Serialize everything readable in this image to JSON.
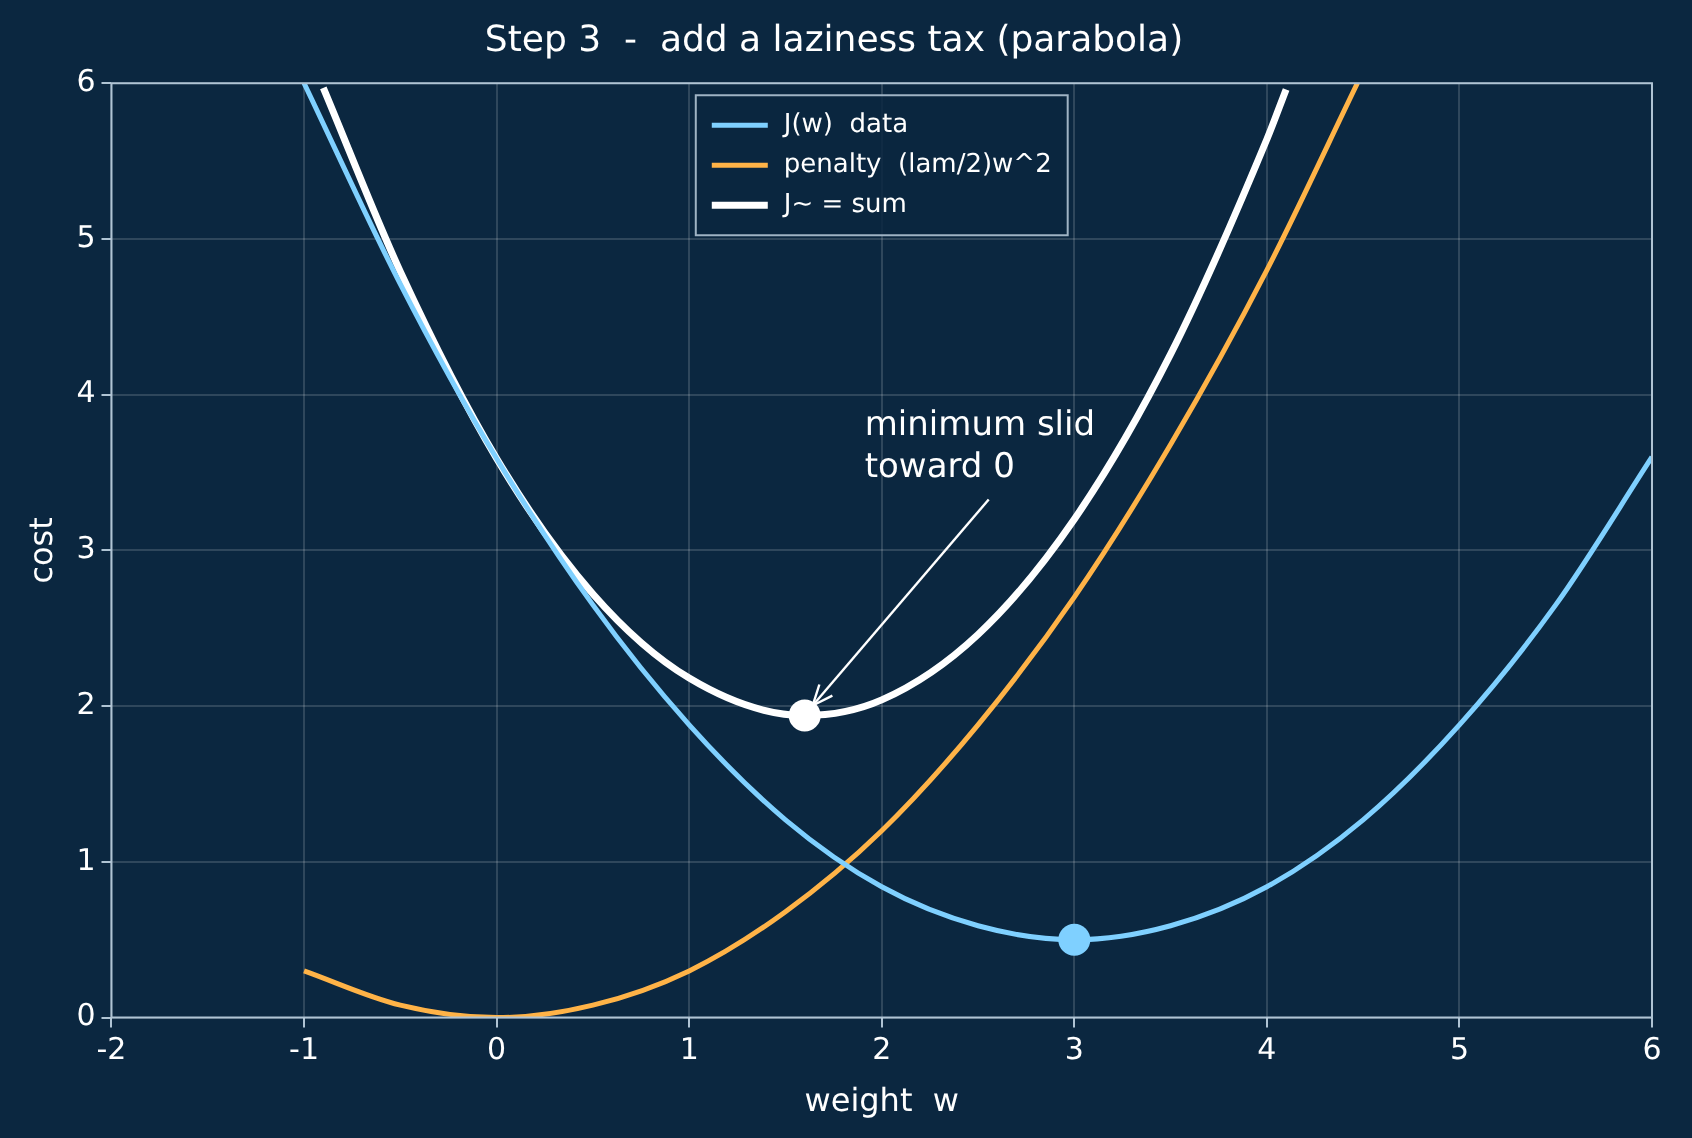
{
  "chart_data": {
    "type": "line",
    "title": "Step 3  -  add a laziness tax (parabola)",
    "xlabel": "weight  w",
    "ylabel": "cost",
    "xlim": [
      -2,
      6
    ],
    "xticks": [
      -2,
      -1,
      0,
      1,
      2,
      3,
      4,
      5,
      6
    ],
    "ylim": [
      0,
      6
    ],
    "yticks": [
      0,
      1,
      2,
      3,
      4,
      5,
      6
    ],
    "grid": true,
    "legend": "top",
    "marker": "none",
    "series": [
      {
        "name": "J(w)  data",
        "color": "#7fd0ff",
        "x": [
          -1,
          -0.5,
          0,
          0.5,
          1,
          1.5,
          2,
          2.5,
          3,
          3.5,
          4,
          4.5,
          5,
          5.5,
          6
        ],
        "values": [
          6.0,
          4.71,
          3.59,
          2.65,
          1.88,
          1.27,
          0.84,
          0.59,
          0.5,
          0.59,
          0.84,
          1.27,
          1.88,
          2.65,
          3.6
        ]
      },
      {
        "name": "penalty  (lam/2)w^2",
        "color": "#ffb347",
        "x": [
          -1,
          -0.5,
          0,
          0.5,
          1,
          1.5,
          2,
          2.5,
          3,
          3.5,
          4,
          4.47
        ],
        "values": [
          0.3,
          0.08,
          0,
          0.08,
          0.3,
          0.68,
          1.2,
          1.88,
          2.7,
          3.68,
          4.8,
          6.0
        ]
      },
      {
        "name": "J~ = sum",
        "color": "#ffffff",
        "x": [
          -0.9,
          -0.5,
          0,
          0.5,
          1,
          1.6,
          2,
          2.5,
          3,
          3.5,
          4,
          4.1
        ],
        "values": [
          5.97,
          4.79,
          3.59,
          2.72,
          2.18,
          1.94,
          2.04,
          2.46,
          3.2,
          4.26,
          5.64,
          5.96
        ]
      },
      {
        "type": "scatter",
        "color": "#ffffff",
        "marker": "circle",
        "x": [
          1.6
        ],
        "values": [
          1.94
        ]
      },
      {
        "type": "scatter",
        "color": "#7fd0ff",
        "marker": "circle",
        "x": [
          3
        ],
        "values": [
          0.5
        ]
      }
    ],
    "annotations": [
      {
        "text": "minimum slid\ntoward 0",
        "x": 1.6,
        "y": 1.94
      }
    ]
  }
}
